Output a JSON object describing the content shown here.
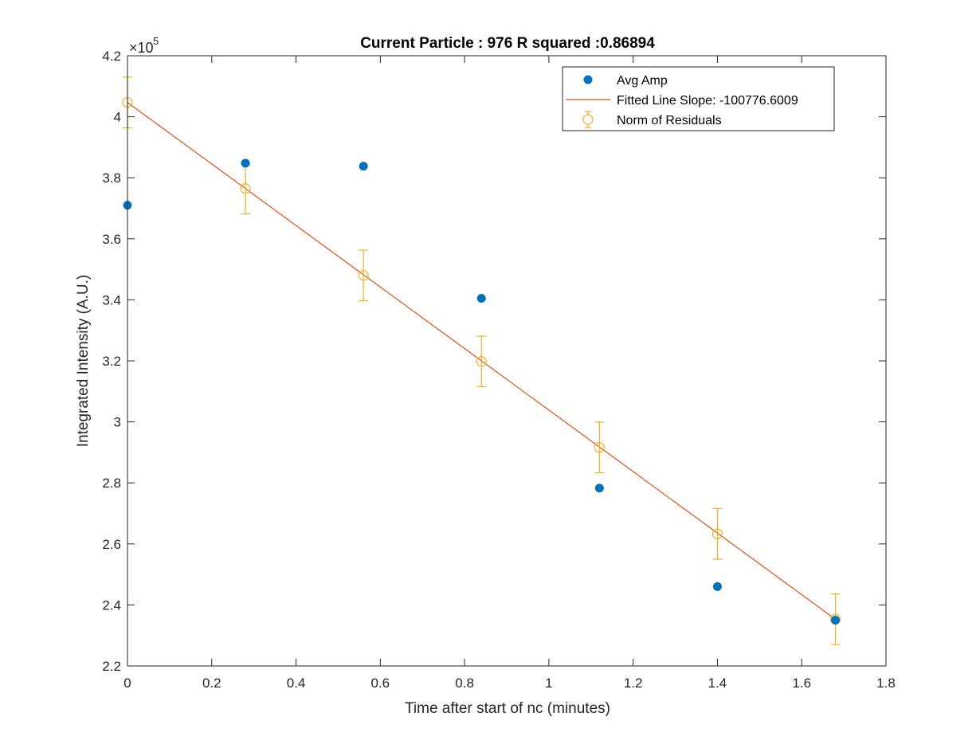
{
  "chart_data": {
    "type": "scatter",
    "title": "Current Particle : 976   R squared :0.86894",
    "xlabel": "Time after start of nc (minutes)",
    "ylabel": "Integrated Intensity (A.U.)",
    "y_exponent_label": "×10",
    "y_exponent_power": "5",
    "xlim": [
      0,
      1.8
    ],
    "ylim": [
      2.2,
      4.2
    ],
    "x_ticks": [
      0,
      0.2,
      0.4,
      0.6,
      0.8,
      1,
      1.2,
      1.4,
      1.6,
      1.8
    ],
    "x_tick_labels": [
      "0",
      "0.2",
      "0.4",
      "0.6",
      "0.8",
      "1",
      "1.2",
      "1.4",
      "1.6",
      "1.8"
    ],
    "y_ticks": [
      2.2,
      2.4,
      2.6,
      2.8,
      3.0,
      3.2,
      3.4,
      3.6,
      3.8,
      4.0,
      4.2
    ],
    "y_tick_labels": [
      "2.2",
      "2.4",
      "2.6",
      "2.8",
      "3",
      "3.2",
      "3.4",
      "3.6",
      "3.8",
      "4",
      "4.2"
    ],
    "y_scale_note": "values in units of 1e5",
    "grid": false,
    "legend_position": "top-right",
    "series": [
      {
        "name": "Avg Amp",
        "kind": "scatter",
        "color": "#0072BD",
        "x": [
          0,
          0.28,
          0.56,
          0.84,
          1.12,
          1.4,
          1.68
        ],
        "y": [
          3.71,
          3.848,
          3.838,
          3.405,
          2.783,
          2.46,
          2.35
        ]
      },
      {
        "name": "Fitted Line Slope: -100776.6009",
        "kind": "line",
        "color": "#D95319",
        "x": [
          0,
          1.68
        ],
        "y": [
          4.047,
          2.353
        ]
      },
      {
        "name": "Norm of Residuals",
        "kind": "errorbar",
        "color": "#EDB120",
        "x": [
          0,
          0.28,
          0.56,
          0.84,
          1.12,
          1.4,
          1.68
        ],
        "y": [
          4.047,
          3.765,
          3.48,
          3.198,
          2.916,
          2.633,
          2.353
        ],
        "error": 0.083
      }
    ]
  }
}
